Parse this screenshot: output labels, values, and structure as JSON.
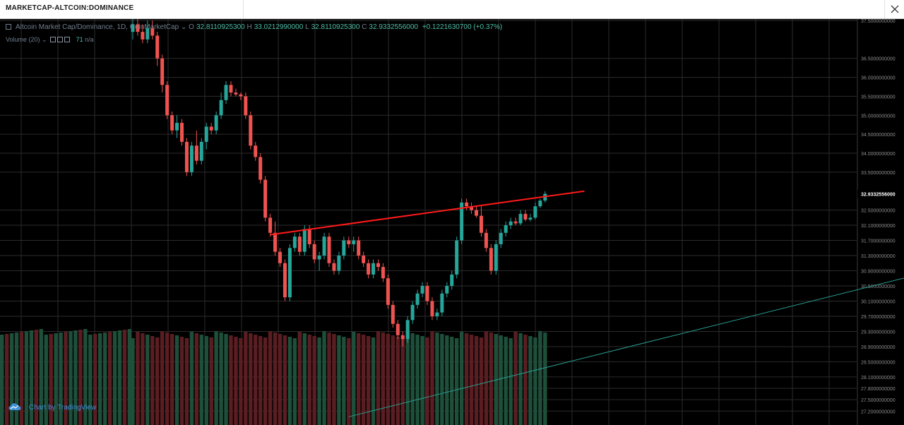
{
  "window": {
    "tab_title": "MARKETCAP-ALTCOIN:DOMINANCE",
    "close_icon": "close-icon"
  },
  "legend": {
    "symbol": "Altcoin Market Cap/Dominance, 1D, CoinMarketCap",
    "open_label": "O",
    "open": "32.8110925300",
    "high_label": "H",
    "high": "33.0212990000",
    "low_label": "L",
    "low": "32.8110925300",
    "close_label": "C",
    "close": "32.9332556000",
    "change": "+0.1221630700 (+0.37%)",
    "volume_label": "Volume (20)",
    "volume_value": "71",
    "volume_extra": "n/a"
  },
  "watermark": {
    "text": "Chart by TradingView",
    "icon": "tradingview-cloud-icon"
  },
  "colors": {
    "up": "#26a69a",
    "down": "#ef5350",
    "vol_up": "#1e4f3a",
    "vol_down": "#5a1e22",
    "grid": "#2b2b2b",
    "axis_text": "#8c8c8c",
    "trendline_red": "#ff1a1a",
    "trendline_teal": "#2a9d8f"
  },
  "chart_data": {
    "type": "candlestick",
    "title": "Altcoin Market Cap/Dominance, 1D, CoinMarketCap",
    "y_axis": {
      "ylim": [
        27.0,
        37.5
      ],
      "tick_labels": [
        "37.5000000000",
        "36.5000000000",
        "36.0000000000",
        "35.5000000000",
        "35.0000000000",
        "34.5000000000",
        "34.0000000000",
        "33.5000000000",
        "32.5000000000",
        "32.1000000000",
        "31.7000000000",
        "31.3000000000",
        "30.9000000000",
        "30.5000000000",
        "30.1000000000",
        "29.7000000000",
        "29.3000000000",
        "28.9000000000",
        "28.5000000000",
        "28.1000000000",
        "27.8000000000",
        "27.5000000000",
        "27.2000000000"
      ],
      "tick_values": [
        37.5,
        36.5,
        36.0,
        35.5,
        35.0,
        34.5,
        34.0,
        33.5,
        32.5,
        32.1,
        31.7,
        31.3,
        30.9,
        30.5,
        30.1,
        29.7,
        29.3,
        28.9,
        28.5,
        28.1,
        27.8,
        27.5,
        27.2
      ],
      "last_price_label": "32.9332556000",
      "last_price": 32.93
    },
    "grid": true,
    "candles": [
      {
        "o": 37.2,
        "h": 37.6,
        "l": 37.0,
        "c": 37.4
      },
      {
        "o": 37.4,
        "h": 37.6,
        "l": 37.1,
        "c": 37.2
      },
      {
        "o": 37.2,
        "h": 37.4,
        "l": 36.9,
        "c": 37.0
      },
      {
        "o": 37.0,
        "h": 37.5,
        "l": 36.9,
        "c": 37.3
      },
      {
        "o": 37.3,
        "h": 37.5,
        "l": 37.0,
        "c": 37.1
      },
      {
        "o": 37.1,
        "h": 37.2,
        "l": 36.3,
        "c": 36.5
      },
      {
        "o": 36.5,
        "h": 36.6,
        "l": 35.6,
        "c": 35.8
      },
      {
        "o": 35.8,
        "h": 35.9,
        "l": 34.9,
        "c": 35.0
      },
      {
        "o": 35.0,
        "h": 35.1,
        "l": 34.5,
        "c": 34.6
      },
      {
        "o": 34.6,
        "h": 35.0,
        "l": 34.4,
        "c": 34.8
      },
      {
        "o": 34.8,
        "h": 34.9,
        "l": 34.2,
        "c": 34.3
      },
      {
        "o": 34.3,
        "h": 34.4,
        "l": 33.4,
        "c": 33.5
      },
      {
        "o": 33.5,
        "h": 34.3,
        "l": 33.4,
        "c": 34.2
      },
      {
        "o": 34.2,
        "h": 34.6,
        "l": 33.7,
        "c": 33.8
      },
      {
        "o": 33.8,
        "h": 34.4,
        "l": 33.7,
        "c": 34.3
      },
      {
        "o": 34.3,
        "h": 34.8,
        "l": 34.1,
        "c": 34.7
      },
      {
        "o": 34.7,
        "h": 34.8,
        "l": 34.5,
        "c": 34.6
      },
      {
        "o": 34.6,
        "h": 35.1,
        "l": 34.5,
        "c": 35.0
      },
      {
        "o": 35.0,
        "h": 35.6,
        "l": 34.9,
        "c": 35.4
      },
      {
        "o": 35.4,
        "h": 35.9,
        "l": 35.3,
        "c": 35.8
      },
      {
        "o": 35.8,
        "h": 35.9,
        "l": 35.5,
        "c": 35.6
      },
      {
        "o": 35.6,
        "h": 35.7,
        "l": 35.5,
        "c": 35.55
      },
      {
        "o": 35.55,
        "h": 35.6,
        "l": 35.4,
        "c": 35.5
      },
      {
        "o": 35.5,
        "h": 35.6,
        "l": 34.9,
        "c": 35.0
      },
      {
        "o": 35.0,
        "h": 35.1,
        "l": 34.1,
        "c": 34.2
      },
      {
        "o": 34.2,
        "h": 34.3,
        "l": 33.8,
        "c": 33.9
      },
      {
        "o": 33.9,
        "h": 34.0,
        "l": 33.2,
        "c": 33.3
      },
      {
        "o": 33.3,
        "h": 33.4,
        "l": 32.2,
        "c": 32.3
      },
      {
        "o": 32.3,
        "h": 32.4,
        "l": 31.8,
        "c": 31.9
      },
      {
        "o": 31.9,
        "h": 32.2,
        "l": 31.3,
        "c": 31.4
      },
      {
        "o": 31.4,
        "h": 31.5,
        "l": 31.0,
        "c": 31.1
      },
      {
        "o": 31.1,
        "h": 31.2,
        "l": 30.1,
        "c": 30.2
      },
      {
        "o": 30.2,
        "h": 31.6,
        "l": 30.1,
        "c": 31.5
      },
      {
        "o": 31.5,
        "h": 31.9,
        "l": 31.4,
        "c": 31.8
      },
      {
        "o": 31.8,
        "h": 31.9,
        "l": 31.3,
        "c": 31.4
      },
      {
        "o": 31.4,
        "h": 32.1,
        "l": 31.3,
        "c": 32.0
      },
      {
        "o": 32.0,
        "h": 32.1,
        "l": 31.5,
        "c": 31.6
      },
      {
        "o": 31.6,
        "h": 31.7,
        "l": 31.1,
        "c": 31.2
      },
      {
        "o": 31.2,
        "h": 31.4,
        "l": 30.9,
        "c": 31.3
      },
      {
        "o": 31.3,
        "h": 31.9,
        "l": 31.2,
        "c": 31.8
      },
      {
        "o": 31.8,
        "h": 31.9,
        "l": 31.0,
        "c": 31.1
      },
      {
        "o": 31.1,
        "h": 31.2,
        "l": 30.8,
        "c": 30.9
      },
      {
        "o": 30.9,
        "h": 31.4,
        "l": 30.8,
        "c": 31.3
      },
      {
        "o": 31.3,
        "h": 31.8,
        "l": 31.2,
        "c": 31.7
      },
      {
        "o": 31.7,
        "h": 31.8,
        "l": 31.5,
        "c": 31.6
      },
      {
        "o": 31.6,
        "h": 31.8,
        "l": 31.4,
        "c": 31.7
      },
      {
        "o": 31.7,
        "h": 31.8,
        "l": 31.2,
        "c": 31.3
      },
      {
        "o": 31.3,
        "h": 31.4,
        "l": 31.0,
        "c": 31.1
      },
      {
        "o": 31.1,
        "h": 31.2,
        "l": 30.7,
        "c": 30.8
      },
      {
        "o": 30.8,
        "h": 31.2,
        "l": 30.7,
        "c": 31.1
      },
      {
        "o": 31.1,
        "h": 31.2,
        "l": 30.9,
        "c": 31.0
      },
      {
        "o": 31.0,
        "h": 31.1,
        "l": 30.6,
        "c": 30.7
      },
      {
        "o": 30.7,
        "h": 30.8,
        "l": 29.9,
        "c": 30.0
      },
      {
        "o": 30.0,
        "h": 30.1,
        "l": 29.4,
        "c": 29.5
      },
      {
        "o": 29.5,
        "h": 29.6,
        "l": 29.1,
        "c": 29.2
      },
      {
        "o": 29.2,
        "h": 29.3,
        "l": 28.9,
        "c": 29.1
      },
      {
        "o": 29.1,
        "h": 29.7,
        "l": 29.0,
        "c": 29.6
      },
      {
        "o": 29.6,
        "h": 30.1,
        "l": 29.5,
        "c": 30.0
      },
      {
        "o": 30.0,
        "h": 30.4,
        "l": 29.9,
        "c": 30.3
      },
      {
        "o": 30.3,
        "h": 30.6,
        "l": 30.2,
        "c": 30.5
      },
      {
        "o": 30.5,
        "h": 30.6,
        "l": 30.0,
        "c": 30.1
      },
      {
        "o": 30.1,
        "h": 30.2,
        "l": 29.6,
        "c": 29.7
      },
      {
        "o": 29.7,
        "h": 29.9,
        "l": 29.6,
        "c": 29.8
      },
      {
        "o": 29.8,
        "h": 30.4,
        "l": 29.7,
        "c": 30.3
      },
      {
        "o": 30.3,
        "h": 30.6,
        "l": 30.2,
        "c": 30.5
      },
      {
        "o": 30.5,
        "h": 30.9,
        "l": 30.4,
        "c": 30.8
      },
      {
        "o": 30.8,
        "h": 31.8,
        "l": 30.7,
        "c": 31.7
      },
      {
        "o": 31.7,
        "h": 32.8,
        "l": 31.6,
        "c": 32.7
      },
      {
        "o": 32.7,
        "h": 32.8,
        "l": 32.5,
        "c": 32.6
      },
      {
        "o": 32.6,
        "h": 32.7,
        "l": 32.4,
        "c": 32.5
      },
      {
        "o": 32.5,
        "h": 32.6,
        "l": 32.3,
        "c": 32.35
      },
      {
        "o": 32.35,
        "h": 32.6,
        "l": 31.8,
        "c": 31.9
      },
      {
        "o": 31.9,
        "h": 32.0,
        "l": 31.4,
        "c": 31.5
      },
      {
        "o": 31.5,
        "h": 31.6,
        "l": 30.8,
        "c": 30.9
      },
      {
        "o": 30.9,
        "h": 31.7,
        "l": 30.8,
        "c": 31.6
      },
      {
        "o": 31.6,
        "h": 32.0,
        "l": 31.5,
        "c": 31.9
      },
      {
        "o": 31.9,
        "h": 32.2,
        "l": 31.8,
        "c": 32.1
      },
      {
        "o": 32.1,
        "h": 32.3,
        "l": 32.0,
        "c": 32.2
      },
      {
        "o": 32.2,
        "h": 32.3,
        "l": 32.1,
        "c": 32.15
      },
      {
        "o": 32.15,
        "h": 32.5,
        "l": 32.1,
        "c": 32.4
      },
      {
        "o": 32.4,
        "h": 32.5,
        "l": 32.2,
        "c": 32.25
      },
      {
        "o": 32.25,
        "h": 32.4,
        "l": 32.2,
        "c": 32.3
      },
      {
        "o": 32.3,
        "h": 32.7,
        "l": 32.25,
        "c": 32.6
      },
      {
        "o": 32.6,
        "h": 32.8,
        "l": 32.55,
        "c": 32.75
      },
      {
        "o": 32.75,
        "h": 33.0,
        "l": 32.7,
        "c": 32.93
      }
    ],
    "trendlines": [
      {
        "name": "",
        "points": [
          [
            28,
            31.85
          ],
          [
            92,
            33.0
          ]
        ],
        "color": "red"
      },
      {
        "name": "",
        "points": [
          [
            44,
            27.05
          ],
          [
            160,
            30.8
          ]
        ],
        "color": "teal"
      }
    ]
  }
}
